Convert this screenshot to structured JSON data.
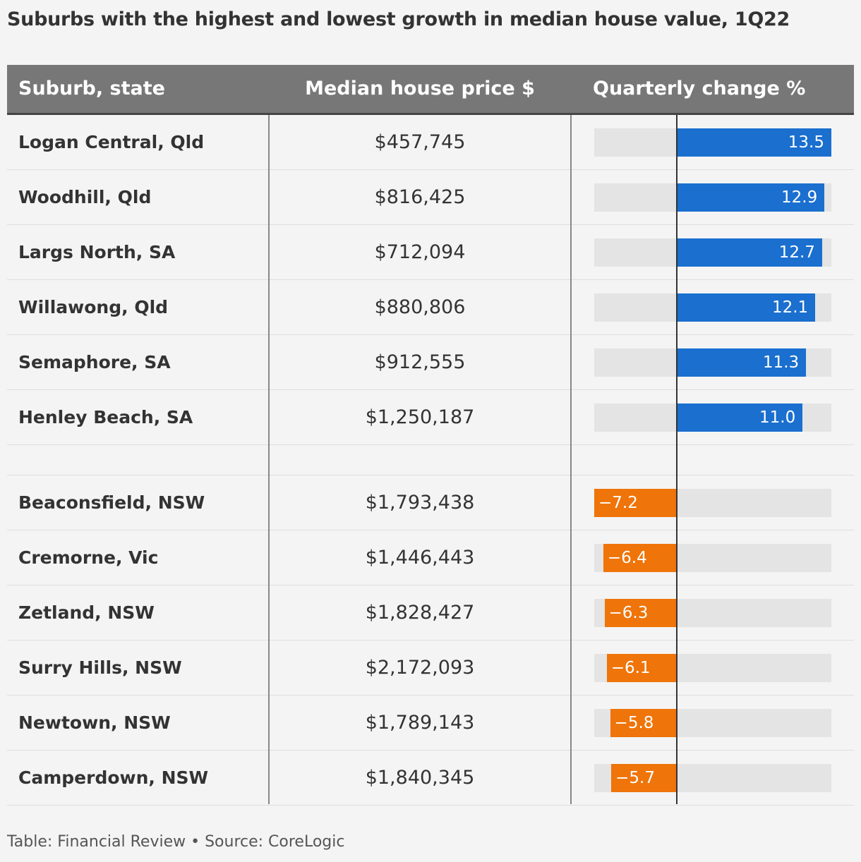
{
  "title": "Suburbs with the highest and lowest growth in median house value, 1Q22",
  "headers": {
    "suburb": "Suburb, state",
    "price": "Median house price $",
    "change": "Quarterly change %"
  },
  "footer": "Table: Financial Review • Source: CoreLogic",
  "colors": {
    "positive": "#1a6fcf",
    "negative": "#ef7409",
    "track": "#e4e4e4",
    "header": "#777777"
  },
  "chart_data": {
    "type": "table",
    "columns": [
      "Suburb, state",
      "Median house price $",
      "Quarterly change %"
    ],
    "bar_range": [
      -7.2,
      13.5
    ],
    "top_rows": [
      {
        "suburb": "Logan Central, Qld",
        "price": "$457,745",
        "change": 13.5,
        "change_label": "13.5"
      },
      {
        "suburb": "Woodhill, Qld",
        "price": "$816,425",
        "change": 12.9,
        "change_label": "12.9"
      },
      {
        "suburb": "Largs North, SA",
        "price": "$712,094",
        "change": 12.7,
        "change_label": "12.7"
      },
      {
        "suburb": "Willawong, Qld",
        "price": "$880,806",
        "change": 12.1,
        "change_label": "12.1"
      },
      {
        "suburb": "Semaphore, SA",
        "price": "$912,555",
        "change": 11.3,
        "change_label": "11.3"
      },
      {
        "suburb": "Henley Beach, SA",
        "price": "$1,250,187",
        "change": 11.0,
        "change_label": "11.0"
      }
    ],
    "bottom_rows": [
      {
        "suburb": "Beaconsfield, NSW",
        "price": "$1,793,438",
        "change": -7.2,
        "change_label": "−7.2"
      },
      {
        "suburb": "Cremorne, Vic",
        "price": "$1,446,443",
        "change": -6.4,
        "change_label": "−6.4"
      },
      {
        "suburb": "Zetland, NSW",
        "price": "$1,828,427",
        "change": -6.3,
        "change_label": "−6.3"
      },
      {
        "suburb": "Surry Hills, NSW",
        "price": "$2,172,093",
        "change": -6.1,
        "change_label": "−6.1"
      },
      {
        "suburb": "Newtown, NSW",
        "price": "$1,789,143",
        "change": -5.8,
        "change_label": "−5.8"
      },
      {
        "suburb": "Camperdown, NSW",
        "price": "$1,840,345",
        "change": -5.7,
        "change_label": "−5.7"
      }
    ]
  }
}
